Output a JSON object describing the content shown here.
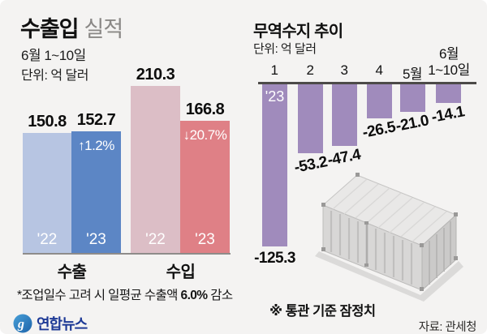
{
  "left_chart": {
    "title_bold": "수출입",
    "title_light": "실적",
    "subtitle": "6월 1~10일",
    "unit_label": "단위: 억 달러",
    "footnote_pre": "*조업일수 고려 시 일평균 수출액 ",
    "footnote_bold": "6.0%",
    "footnote_post": " 감소"
  },
  "right_chart": {
    "title": "무역수지 추이",
    "unit_label": "단위: 억 달러",
    "month_labels": [
      "1",
      "2",
      "3",
      "4",
      "5월"
    ],
    "june": {
      "line1": "6월",
      "line2": "1~10일"
    },
    "note": "※ 통관 기준 잠정치",
    "source": "자료: 관세청"
  },
  "footer": {
    "logo_text": "연합뉴스"
  },
  "colors": {
    "background": "#f4f3f2",
    "export_prev": "#b7c5e2",
    "export_curr": "#5c86c5",
    "import_prev": "#dcbec6",
    "import_curr": "#df8086",
    "balance_bar": "#a08bbc",
    "axis_left": "#8e8c8a",
    "axis_right": "#4c4a48",
    "logo_navy": "#1e3a96",
    "logo_circle_blue": "#2e7cc3"
  },
  "chart_data": [
    {
      "type": "bar",
      "title": "수출입 실적",
      "subtitle": "6월 1~10일",
      "unit": "억 달러",
      "categories": [
        "수출 '22",
        "수출 '23",
        "수입 '22",
        "수입 '23"
      ],
      "values": [
        150.8,
        152.7,
        210.3,
        166.8
      ],
      "bar_labels": [
        "'22",
        "'23",
        "'22",
        "'23"
      ],
      "change_annotations": [
        "",
        "↑1.2%",
        "",
        "↓20.7%"
      ],
      "group_labels": [
        "수출",
        "수입"
      ],
      "colors": [
        "#b7c5e2",
        "#5c86c5",
        "#dcbec6",
        "#df8086"
      ],
      "ylim": [
        0,
        215
      ],
      "legend_position": "none",
      "grid": false
    },
    {
      "type": "bar",
      "title": "무역수지 추이",
      "unit": "억 달러",
      "series_label": "'23",
      "categories": [
        "1",
        "2",
        "3",
        "4",
        "5월",
        "6월 1~10일"
      ],
      "values": [
        -125.3,
        -53.2,
        -47.4,
        -26.5,
        -21.0,
        -14.1
      ],
      "color": "#a08bbc",
      "ylim": [
        -130,
        0
      ],
      "legend_position": "none",
      "grid": false
    }
  ]
}
